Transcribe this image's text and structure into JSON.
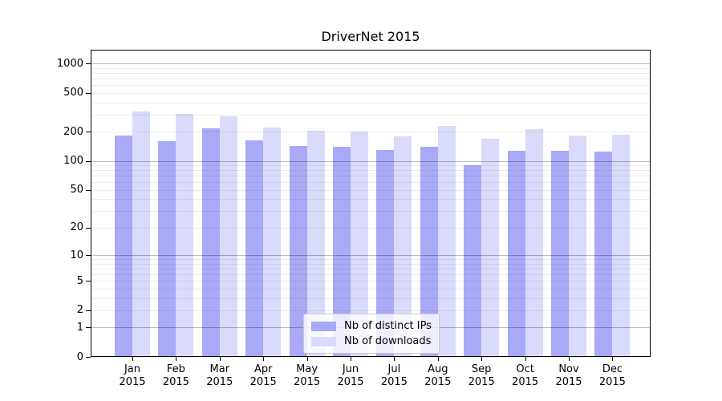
{
  "title": "DriverNet 2015",
  "chart_data": {
    "type": "bar",
    "title": "DriverNet 2015",
    "categories": [
      "Jan 2015",
      "Feb 2015",
      "Mar 2015",
      "Apr 2015",
      "May 2015",
      "Jun 2015",
      "Jul 2015",
      "Aug 2015",
      "Sep 2015",
      "Oct 2015",
      "Nov 2015",
      "Dec 2015"
    ],
    "series": [
      {
        "name": "Nb of distinct IPs",
        "color": "#a9a9f7",
        "values": [
          182,
          160,
          215,
          163,
          142,
          139,
          130,
          140,
          90,
          127,
          128,
          125
        ]
      },
      {
        "name": "Nb of downloads",
        "color": "#dadafb",
        "values": [
          321,
          307,
          288,
          221,
          206,
          200,
          178,
          228,
          169,
          214,
          182,
          187
        ]
      }
    ],
    "xlabel": "",
    "ylabel": "",
    "y_scale": "log1p",
    "y_ticks_labeled": [
      0,
      1,
      2,
      5,
      10,
      20,
      50,
      100,
      200,
      500,
      1000
    ],
    "y_major_gridlines": [
      1,
      10,
      100,
      1000
    ],
    "y_minor_gridlines": [
      2,
      3,
      4,
      5,
      6,
      7,
      8,
      9,
      20,
      30,
      40,
      50,
      60,
      70,
      80,
      90,
      200,
      300,
      400,
      500,
      600,
      700,
      800,
      900
    ],
    "ylim": [
      0,
      1385
    ],
    "grid": true,
    "legend_position": "lower center"
  }
}
